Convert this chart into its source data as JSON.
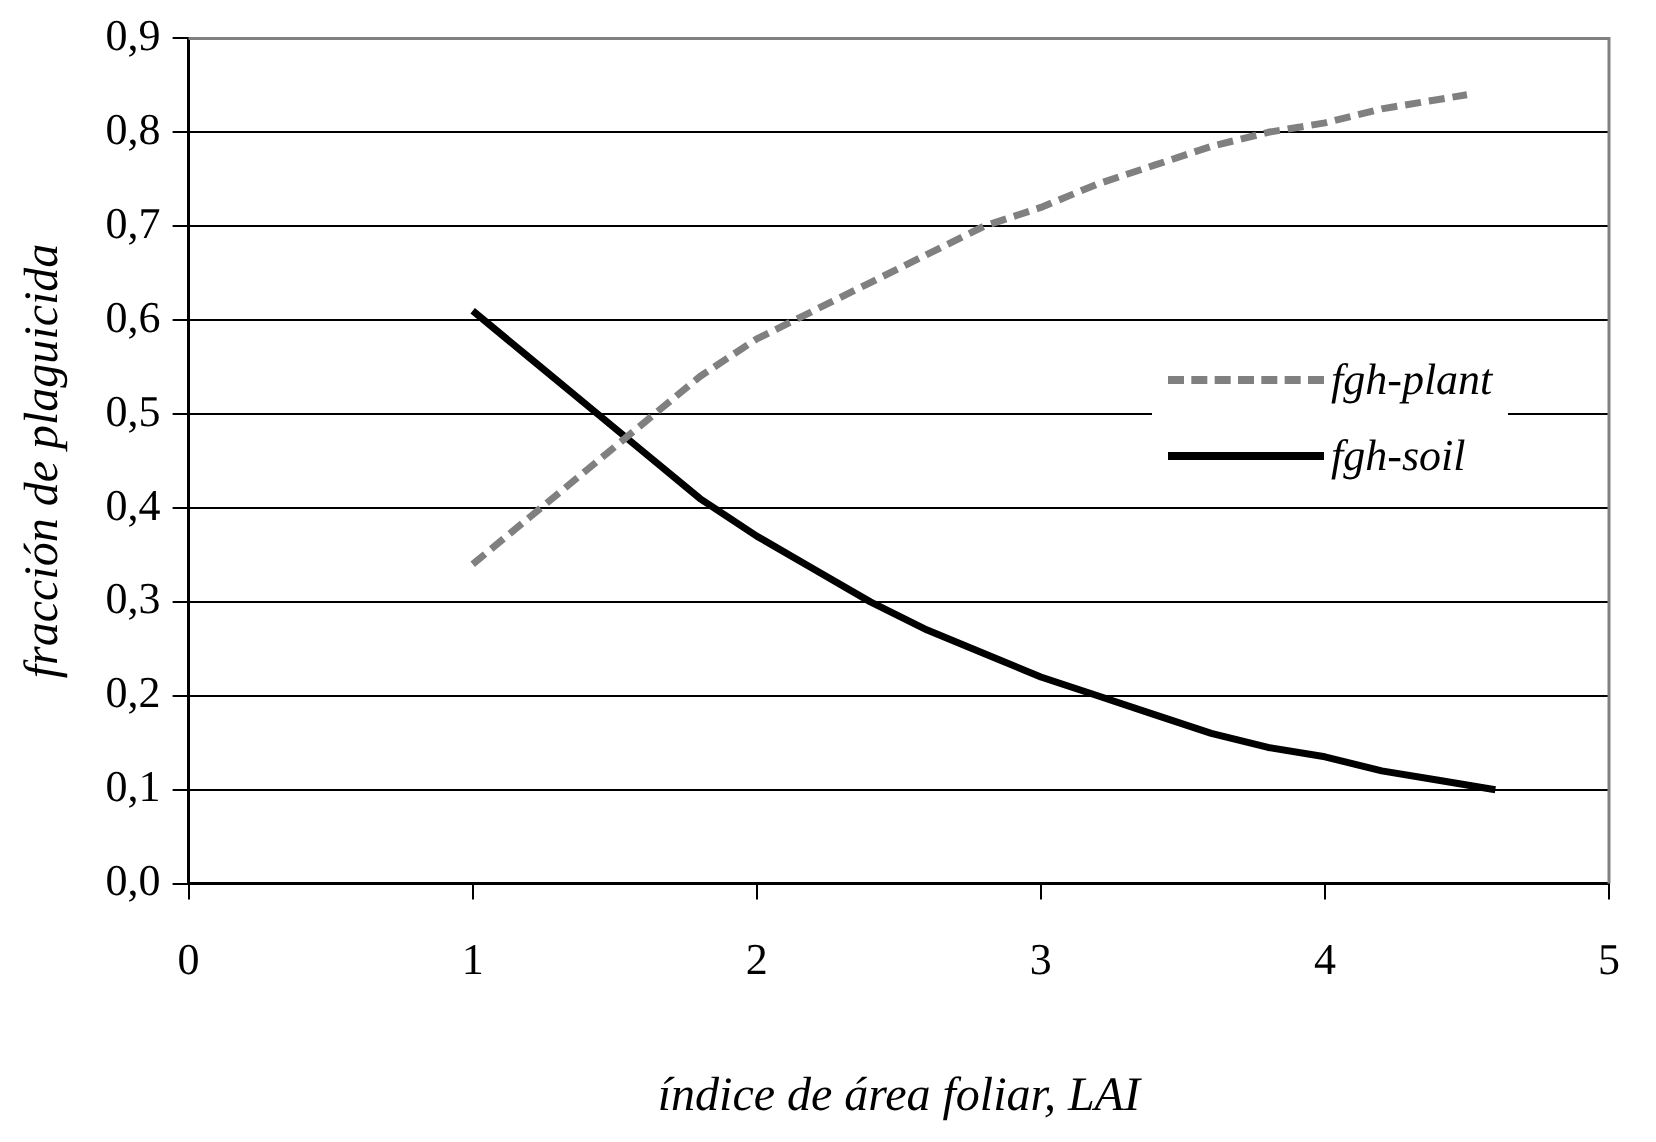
{
  "chart_data": {
    "type": "line",
    "xlabel": "índice de área foliar, LAI",
    "ylabel": "fracción de plaguicida",
    "xlim": [
      0,
      5
    ],
    "xticks": [
      0,
      1,
      2,
      3,
      4,
      5
    ],
    "ylim": [
      0,
      0.9
    ],
    "yticks": [
      {
        "value": 0,
        "label": "0,0"
      },
      {
        "value": 0.1,
        "label": "0,1"
      },
      {
        "value": 0.2,
        "label": "0,2"
      },
      {
        "value": 0.3,
        "label": "0,3"
      },
      {
        "value": 0.4,
        "label": "0,4"
      },
      {
        "value": 0.5,
        "label": "0,5"
      },
      {
        "value": 0.6,
        "label": "0,6"
      },
      {
        "value": 0.7,
        "label": "0,7"
      },
      {
        "value": 0.8,
        "label": "0,8"
      },
      {
        "value": 0.9,
        "label": "0,9"
      }
    ],
    "grid": "y",
    "legend": "right",
    "marker": "none",
    "series": [
      {
        "name": "fgh-plant",
        "color": "#808080",
        "line_style": "dashed",
        "x": [
          1,
          1.2,
          1.4,
          1.6,
          1.8,
          2,
          2.2,
          2.4,
          2.6,
          2.8,
          3,
          3.2,
          3.4,
          3.6,
          3.8,
          4,
          4.2,
          4.4,
          4.5
        ],
        "values": [
          0.34,
          0.39,
          0.44,
          0.49,
          0.54,
          0.58,
          0.61,
          0.64,
          0.67,
          0.7,
          0.72,
          0.745,
          0.765,
          0.785,
          0.8,
          0.81,
          0.825,
          0.835,
          0.84
        ]
      },
      {
        "name": "fgh-soil",
        "color": "#000000",
        "line_style": "solid",
        "x": [
          1,
          1.2,
          1.4,
          1.6,
          1.8,
          2,
          2.2,
          2.4,
          2.6,
          2.8,
          3,
          3.2,
          3.4,
          3.6,
          3.8,
          4,
          4.2,
          4.4,
          4.6
        ],
        "values": [
          0.61,
          0.56,
          0.51,
          0.46,
          0.41,
          0.37,
          0.335,
          0.3,
          0.27,
          0.245,
          0.22,
          0.2,
          0.18,
          0.16,
          0.145,
          0.135,
          0.12,
          0.11,
          0.1
        ]
      }
    ]
  }
}
